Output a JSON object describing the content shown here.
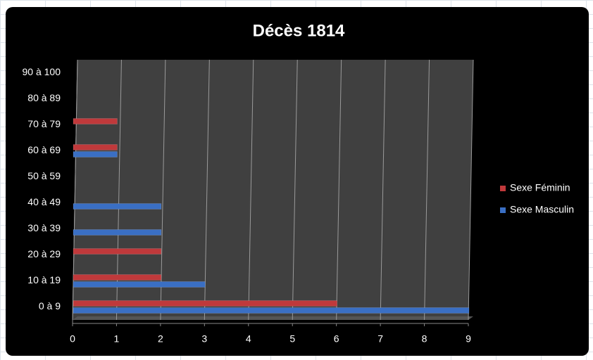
{
  "chart_data": {
    "type": "bar",
    "orientation": "horizontal",
    "title": "Décès 1814",
    "categories": [
      "0 à 9",
      "10 à 19",
      "20 à 29",
      "30 à 39",
      "40 à 49",
      "50 à 59",
      "60 à 69",
      "70 à 79",
      "80 à 89",
      "90 à 100"
    ],
    "series": [
      {
        "name": "Sexe Féminin",
        "color": "#c0393b",
        "values": [
          6,
          2,
          2,
          0,
          0,
          0,
          1,
          1,
          0,
          0
        ]
      },
      {
        "name": "Sexe Masculin",
        "color": "#3a6fc4",
        "values": [
          9,
          3,
          0,
          2,
          2,
          0,
          1,
          0,
          0,
          0
        ]
      }
    ],
    "xlim": [
      0,
      9
    ],
    "xticks": [
      0,
      1,
      2,
      3,
      4,
      5,
      6,
      7,
      8,
      9
    ],
    "grid": true,
    "legend": "right"
  }
}
